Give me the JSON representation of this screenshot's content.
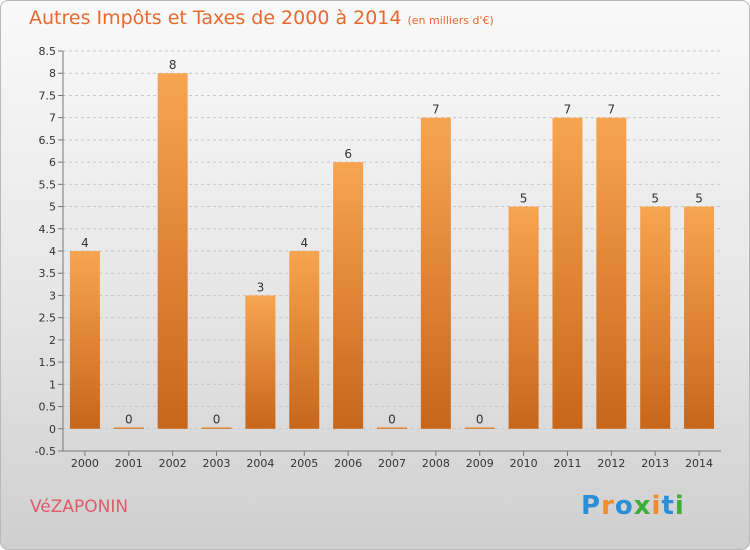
{
  "header": {
    "title": "Autres Impôts et Taxes de 2000 à 2014",
    "unit": "(en milliers d'€)"
  },
  "footer": {
    "town": "VéZAPONIN",
    "brand": "Proxiti"
  },
  "colors": {
    "bar_light": "#f5a24e",
    "bar_dark": "#c8661a",
    "title": "#e8682e",
    "grid": "#c8c8c8"
  },
  "chart_data": {
    "type": "bar",
    "title": "Autres Impôts et Taxes de 2000 à 2014",
    "subtitle": "(en milliers d'€)",
    "categories": [
      "2000",
      "2001",
      "2002",
      "2003",
      "2004",
      "2005",
      "2006",
      "2007",
      "2008",
      "2009",
      "2010",
      "2011",
      "2012",
      "2013",
      "2014"
    ],
    "values": [
      4,
      0,
      8,
      0,
      3,
      4,
      6,
      0,
      7,
      0,
      5,
      7,
      7,
      5,
      5
    ],
    "ylim": [
      -0.5,
      8.5
    ],
    "yticks": [
      -0.5,
      0,
      0.5,
      1,
      1.5,
      2,
      2.5,
      3,
      3.5,
      4,
      4.5,
      5,
      5.5,
      6,
      6.5,
      7,
      7.5,
      8,
      8.5
    ],
    "grid": "horizontal dashed"
  }
}
